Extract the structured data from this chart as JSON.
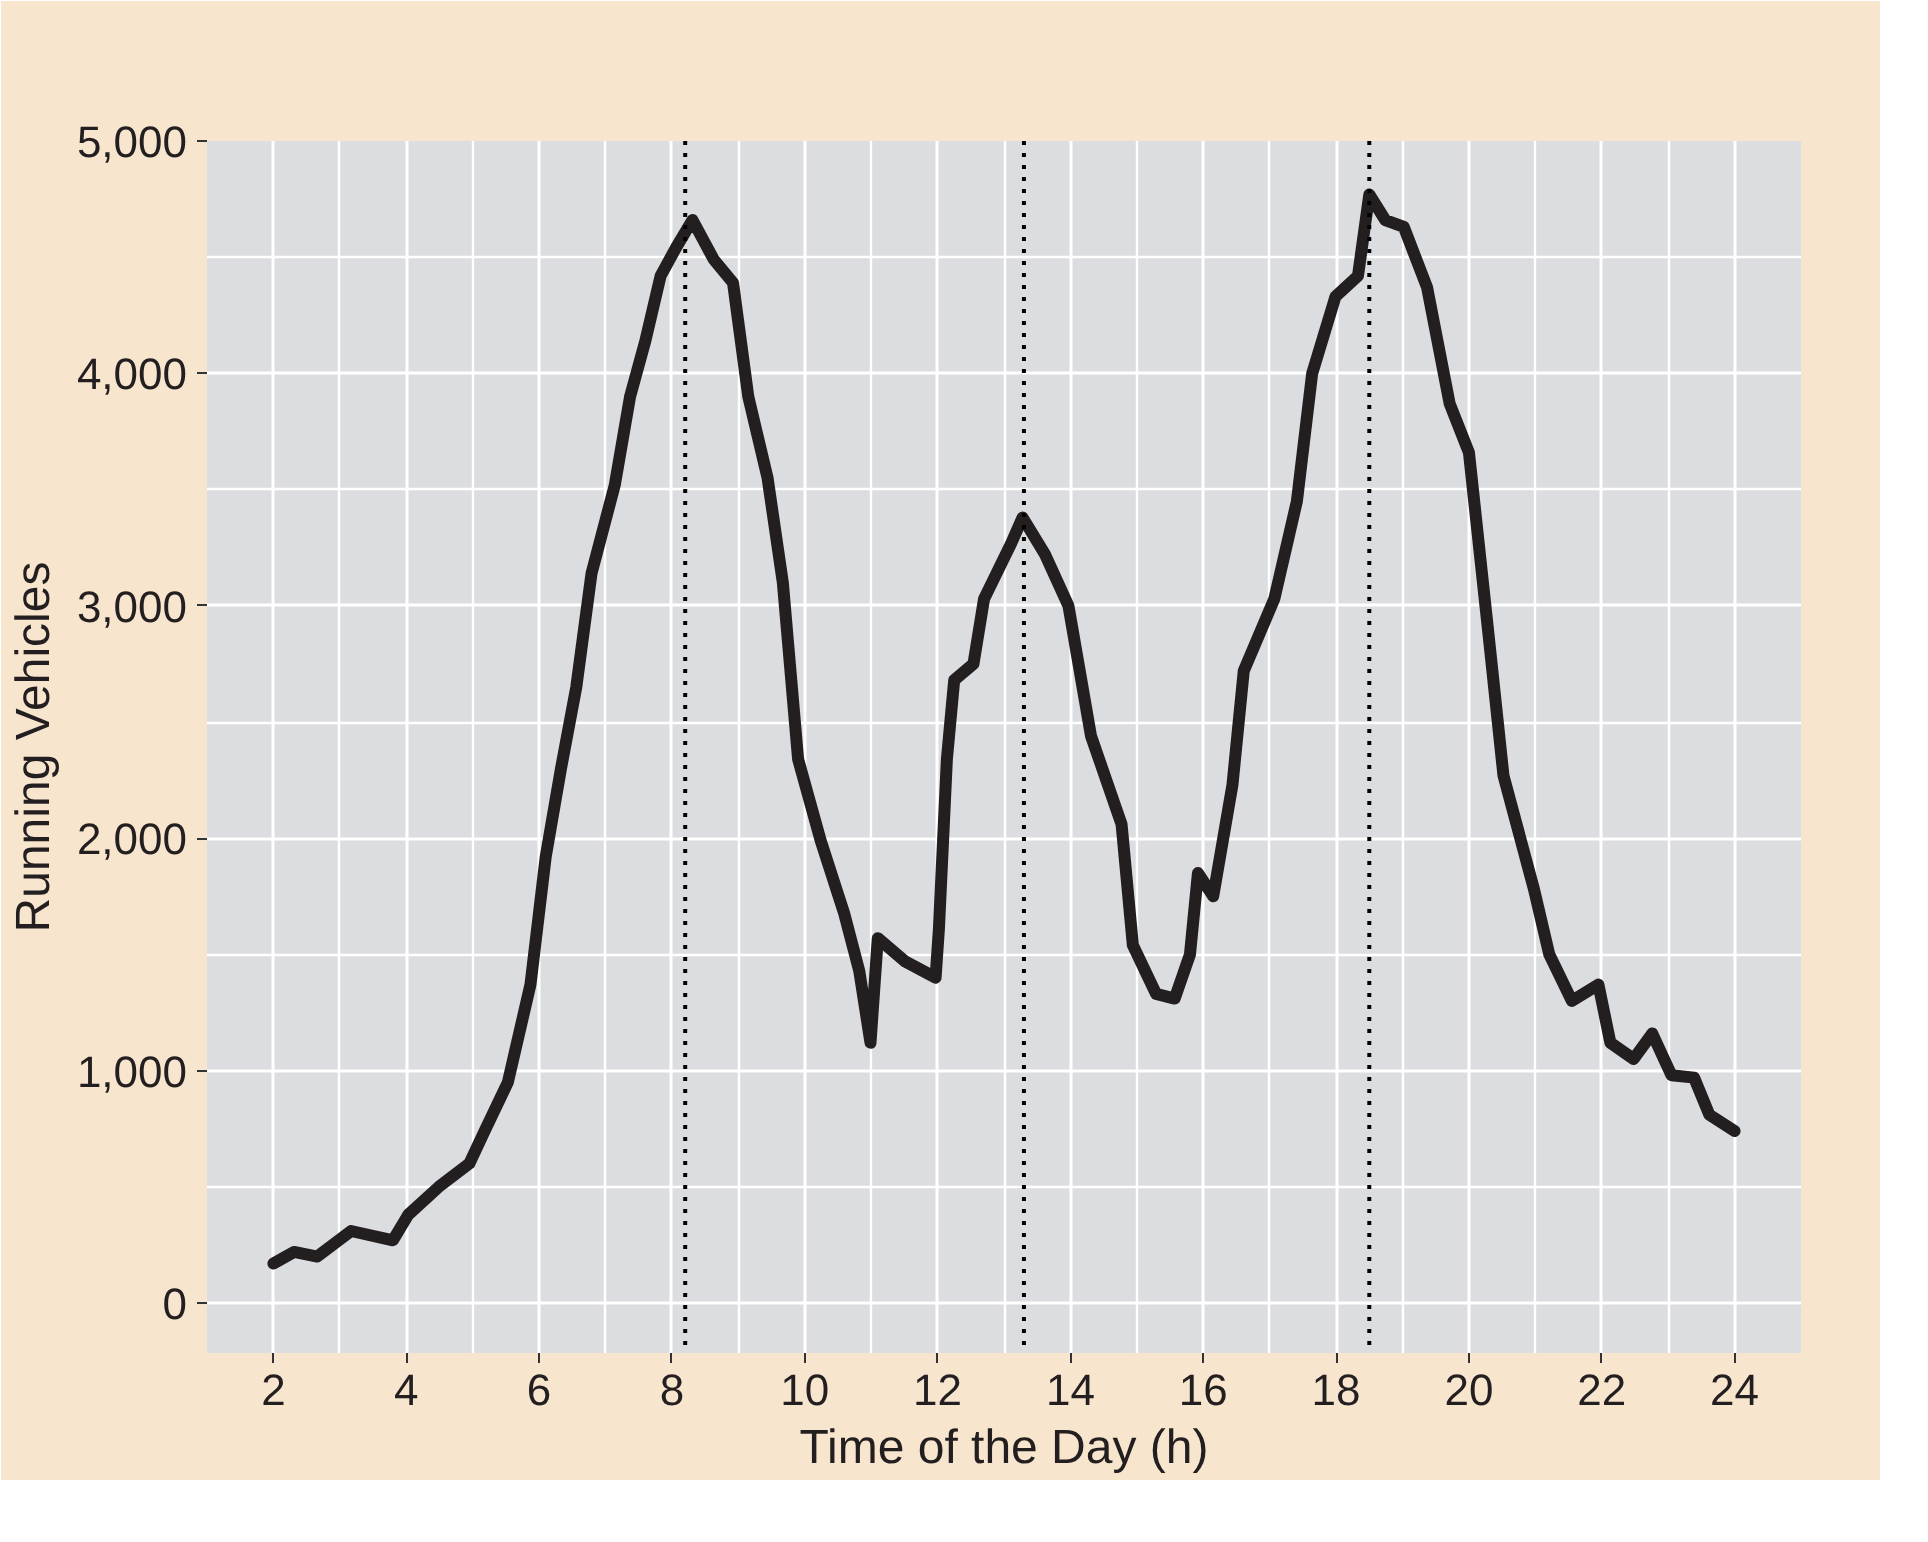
{
  "chart_data": {
    "type": "line",
    "xlabel": "Time of the Day (h)",
    "ylabel": "Running Vehicles",
    "x": [
      2.0,
      2.31,
      2.66,
      3.17,
      3.8,
      4.03,
      4.49,
      4.95,
      5.18,
      5.53,
      5.87,
      6.1,
      6.33,
      6.56,
      6.79,
      7.14,
      7.37,
      7.6,
      7.83,
      8.06,
      8.31,
      8.63,
      8.92,
      9.15,
      9.44,
      9.67,
      9.9,
      10.24,
      10.59,
      10.82,
      10.99,
      11.1,
      11.51,
      11.97,
      12.02,
      12.14,
      12.25,
      12.54,
      12.7,
      13.11,
      13.28,
      13.62,
      13.97,
      14.31,
      14.77,
      14.94,
      15.29,
      15.57,
      15.8,
      15.92,
      16.15,
      16.44,
      16.61,
      17.07,
      17.41,
      17.64,
      17.99,
      18.33,
      18.5,
      18.74,
      19.02,
      19.37,
      19.71,
      20.0,
      20.29,
      20.52,
      20.98,
      21.21,
      21.55,
      21.95,
      22.13,
      22.48,
      22.76,
      23.05,
      23.39,
      23.62,
      24.0
    ],
    "series": [
      {
        "color": "#231f20",
        "values": [
          170,
          220,
          200,
          310,
          270,
          380,
          500,
          600,
          740,
          950,
          1370,
          1920,
          2300,
          2650,
          3140,
          3520,
          3900,
          4140,
          4420,
          4540,
          4660,
          4490,
          4390,
          3900,
          3550,
          3100,
          2340,
          1990,
          1680,
          1430,
          1120,
          1570,
          1470,
          1400,
          1610,
          2340,
          2680,
          2750,
          3030,
          3270,
          3380,
          3220,
          3000,
          2440,
          2060,
          1540,
          1330,
          1310,
          1500,
          1850,
          1750,
          2230,
          2720,
          3030,
          3450,
          4000,
          4330,
          4420,
          4770,
          4660,
          4630,
          4370,
          3870,
          3660,
          2890,
          2270,
          1780,
          1500,
          1300,
          1370,
          1120,
          1050,
          1160,
          980,
          970,
          810,
          740
        ]
      }
    ],
    "xlim": [
      1,
      25
    ],
    "xticks": [
      2,
      4,
      6,
      8,
      10,
      12,
      14,
      16,
      18,
      20,
      22,
      24
    ],
    "ylim": [
      -215,
      5000
    ],
    "yticks": [
      {
        "value": 0,
        "label": "0"
      },
      {
        "value": 1000,
        "label": "1,000"
      },
      {
        "value": 2000,
        "label": "2,000"
      },
      {
        "value": 3000,
        "label": "3,000"
      },
      {
        "value": 4000,
        "label": "4,000"
      },
      {
        "value": 5000,
        "label": "5,000"
      }
    ],
    "ref_lines": [
      {
        "axis": "x",
        "value": 8.2,
        "color": "#000000",
        "line_style": "dotted"
      },
      {
        "axis": "x",
        "value": 13.3,
        "color": "#000000",
        "line_style": "dotted"
      },
      {
        "axis": "x",
        "value": 18.5,
        "color": "#000000",
        "line_style": "dotted"
      }
    ],
    "grid": true,
    "marker": "none",
    "line_style": "solid"
  }
}
